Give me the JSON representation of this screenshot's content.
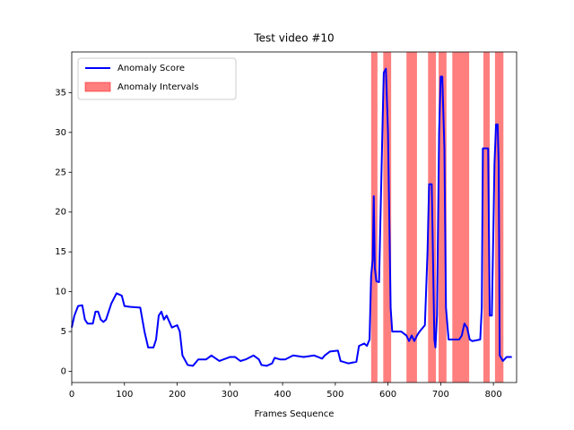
{
  "chart_data": {
    "type": "line",
    "title": "Test video #10",
    "x_label": "Frames Sequence",
    "x": [
      0,
      5,
      12,
      20,
      25,
      30,
      40,
      45,
      50,
      55,
      60,
      65,
      75,
      85,
      95,
      100,
      110,
      130,
      138,
      145,
      155,
      160,
      165,
      170,
      175,
      180,
      190,
      200,
      205,
      210,
      220,
      230,
      240,
      255,
      265,
      280,
      300,
      310,
      320,
      330,
      345,
      355,
      360,
      370,
      380,
      385,
      395,
      405,
      420,
      440,
      460,
      475,
      480,
      490,
      505,
      510,
      525,
      540,
      545,
      555,
      560,
      565,
      568,
      571,
      573,
      575,
      578,
      583,
      586,
      590,
      592,
      596,
      600,
      605,
      608,
      615,
      625,
      635,
      640,
      645,
      650,
      655,
      660,
      670,
      675,
      678,
      683,
      688,
      690,
      693,
      697,
      700,
      703,
      707,
      710,
      715,
      720,
      735,
      740,
      745,
      750,
      755,
      760,
      775,
      778,
      780,
      790,
      793,
      797,
      800,
      802,
      805,
      808,
      810,
      812,
      818,
      825,
      835
    ],
    "series": [
      {
        "name": "Anomaly Score",
        "color": "#0000ff",
        "values": [
          5.5,
          7,
          8.2,
          8.3,
          6.5,
          6,
          6,
          7.5,
          7.5,
          6.5,
          6.2,
          6.5,
          8.5,
          9.8,
          9.5,
          8.2,
          8.1,
          8,
          5,
          3,
          3,
          4,
          7,
          7.5,
          6.5,
          7,
          5.5,
          5.8,
          5,
          2,
          0.8,
          0.7,
          1.5,
          1.5,
          2,
          1.3,
          1.8,
          1.8,
          1.3,
          1.5,
          2,
          1.5,
          0.8,
          0.7,
          1,
          1.7,
          1.5,
          1.5,
          2,
          1.8,
          2,
          1.6,
          2,
          2.5,
          2.6,
          1.3,
          1,
          1.2,
          3.2,
          3.5,
          3.2,
          4,
          12,
          14,
          22,
          13,
          11.3,
          11.2,
          20,
          32,
          37.5,
          38,
          30,
          8,
          5,
          5,
          5,
          4.5,
          3.8,
          4.5,
          3.8,
          4.5,
          5,
          5.8,
          15,
          23.5,
          23.5,
          4,
          3,
          7,
          30,
          37,
          37,
          28,
          8,
          4,
          4,
          4,
          4.5,
          6,
          5.5,
          4,
          3.8,
          4,
          8,
          28,
          28,
          7,
          7,
          18,
          26,
          31,
          31,
          26,
          2,
          1.3,
          1.8,
          1.8
        ]
      }
    ],
    "intervals": {
      "name": "Anomaly Intervals",
      "color": "#ff0000",
      "ranges": [
        [
          568,
          580
        ],
        [
          591,
          606
        ],
        [
          635,
          655
        ],
        [
          676,
          691
        ],
        [
          696,
          711
        ],
        [
          722,
          754
        ],
        [
          781,
          793
        ],
        [
          803,
          819
        ]
      ]
    },
    "xlim": [
      0,
      844
    ],
    "ylim": [
      -1.4,
      40.1
    ],
    "xticks": [
      0,
      100,
      200,
      300,
      400,
      500,
      600,
      700,
      800
    ],
    "yticks": [
      0,
      5,
      10,
      15,
      20,
      25,
      30,
      35
    ],
    "legend": "upper left"
  }
}
